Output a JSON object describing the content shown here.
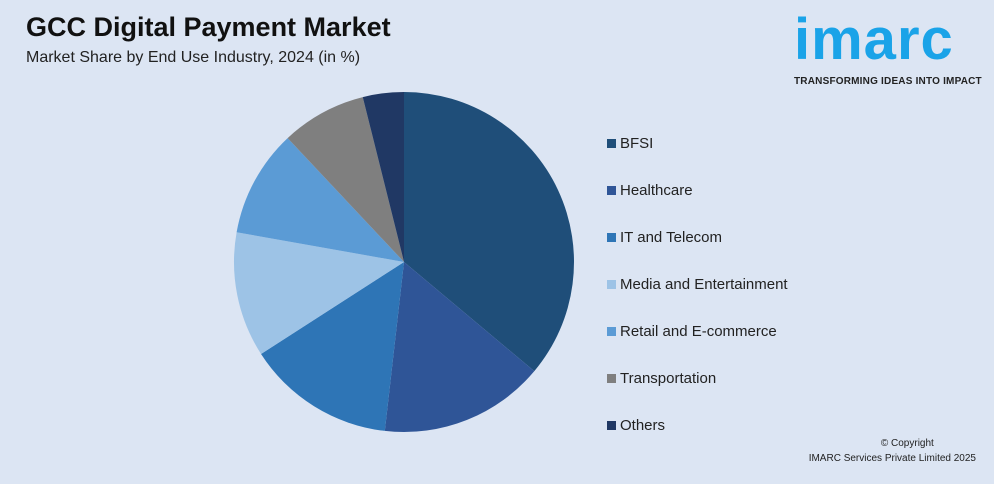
{
  "header": {
    "title": "GCC Digital Payment Market",
    "subtitle": "Market Share by End Use Industry, 2024 (in %)"
  },
  "logo": {
    "word": "imarc",
    "tagline": "TRANSFORMING IDEAS INTO IMPACT"
  },
  "footer": {
    "copyright": "© Copyright",
    "company": "IMARC Services Private Limited 2025"
  },
  "chart_data": {
    "type": "pie",
    "title": "GCC Digital Payment Market",
    "subtitle": "Market Share by End Use Industry, 2024 (in %)",
    "legend_position": "right",
    "categories": [
      "BFSI",
      "Healthcare",
      "IT and Telecom",
      "Media and Entertainment",
      "Retail and E-commerce",
      "Transportation",
      "Others"
    ],
    "values": [
      36.1,
      15.7,
      14.1,
      11.9,
      10.2,
      8.1,
      3.9
    ],
    "colors": [
      "#1f4e79",
      "#2f5597",
      "#2e75b6",
      "#9dc3e6",
      "#5b9bd5",
      "#7f7f7f",
      "#203864"
    ]
  }
}
